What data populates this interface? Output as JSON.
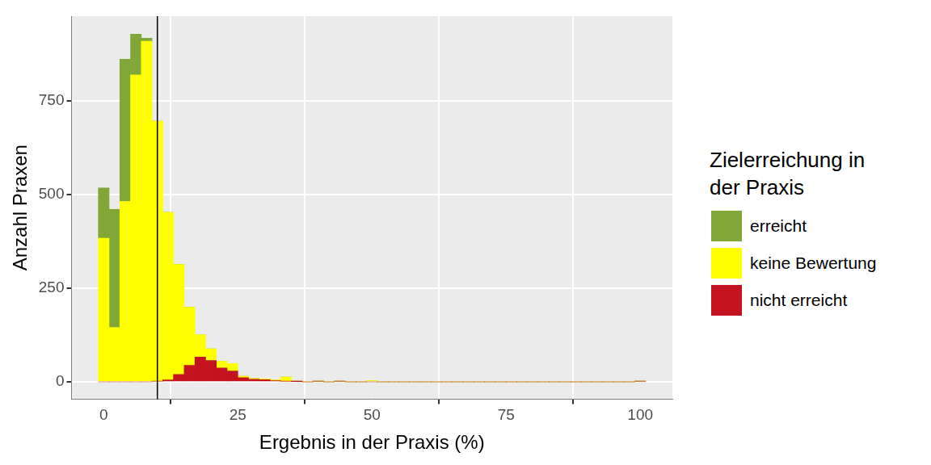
{
  "chart_data": {
    "type": "histogram",
    "xlabel": "Ergebnis in der Praxis (%)",
    "ylabel": "Anzahl Praxen",
    "bins": [
      -1,
      1,
      3,
      5,
      7,
      9,
      11,
      13,
      15,
      17,
      19,
      21,
      23,
      25,
      27,
      29,
      31,
      33,
      35,
      37,
      39,
      41,
      43,
      45,
      47,
      49,
      51,
      53,
      55,
      57,
      59,
      61,
      63,
      65,
      67,
      69,
      71,
      73,
      75,
      77,
      79,
      81,
      83,
      85,
      87,
      89,
      91,
      93,
      95,
      97,
      99,
      101
    ],
    "series": [
      {
        "name": "erreicht",
        "color": "#80A738",
        "values": [
          134,
          315,
          379,
          109,
          8,
          0,
          0,
          0,
          0,
          0,
          0,
          0,
          0,
          0,
          0,
          0,
          0,
          0,
          0,
          0,
          0,
          0,
          0,
          0,
          0,
          0,
          0,
          0,
          0,
          0,
          0,
          0,
          0,
          0,
          0,
          0,
          0,
          0,
          0,
          0,
          0,
          0,
          0,
          0,
          0,
          0,
          0,
          0,
          0,
          0,
          0
        ]
      },
      {
        "name": "keine Bewertung",
        "color": "#FFFF00",
        "values": [
          383,
          145,
          481,
          818,
          908,
          693,
          447,
          293,
          155,
          60,
          31,
          18,
          20,
          4,
          2,
          2,
          2,
          11,
          1,
          0,
          0,
          0,
          0,
          0,
          0,
          3,
          0,
          0,
          0,
          0,
          0,
          0,
          0,
          0,
          0,
          0,
          0,
          0,
          0,
          0,
          0,
          0,
          0,
          0,
          0,
          0,
          0,
          0,
          0,
          0,
          0
        ]
      },
      {
        "name": "nicht erreicht",
        "color": "#C4121F",
        "values": [
          0,
          0,
          0,
          0,
          0,
          2,
          5,
          20,
          44,
          66,
          57,
          37,
          29,
          11,
          7,
          6,
          3,
          2,
          1,
          0,
          2,
          0,
          2,
          0,
          0,
          0,
          0,
          0,
          0,
          0,
          0,
          0,
          0,
          0,
          0,
          0,
          0,
          0,
          0,
          0,
          0,
          0,
          0,
          0,
          0,
          0,
          0,
          0,
          0,
          0,
          2
        ]
      }
    ],
    "xlim": [
      -6,
      106
    ],
    "xticks": [
      0,
      25,
      50,
      75,
      100
    ],
    "ylim": [
      -46,
      975
    ],
    "yticks": [
      0,
      250,
      500,
      750
    ],
    "grid": true,
    "stacked": true,
    "legend": "right",
    "legend_title": "Zielerreichung in der Praxis",
    "vline": 10
  }
}
